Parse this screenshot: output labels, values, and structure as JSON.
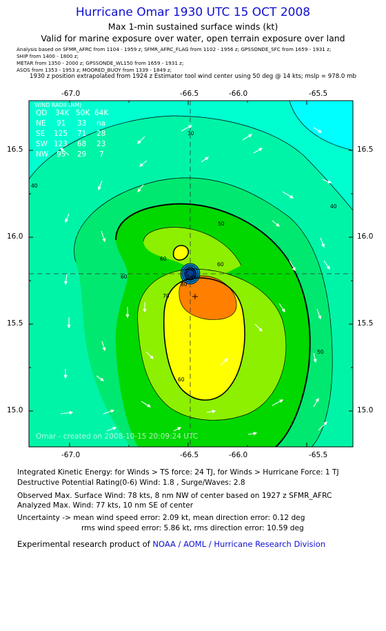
{
  "header": {
    "title": "Hurricane Omar 1930 UTC 15 OCT 2008",
    "subtitle": "Max 1-min sustained surface winds (kt)",
    "validity": "Valid for marine exposure over water, open terrain exposure over land"
  },
  "analysis_sources": [
    "Analysis based on  SFMR_AFRC from 1104 - 1959 z;  SFMR_AFRC_FLAG from 1102 - 1956 z;  GPSSONDE_SFC from 1659 - 1931 z;",
    "SHIP from 1400 - 1800 z;",
    "METAR from 1350 - 2000 z;  GPSSONDE_WL150 from 1659 - 1931 z;",
    "ASOS from 1353 - 1953 z;  MOORED_BUOY from 1339 - 1849 z;"
  ],
  "position_note": "1930 z position extrapolated from 1924 z Estimator tool wind center using 50 deg @ 14 kts; mslp = 978.0 mb",
  "axes": {
    "x_ticks": [
      "-67.0",
      "-66.5",
      "-66.0",
      "-65.5"
    ],
    "y_ticks": [
      "16.5",
      "16.0",
      "15.5",
      "15.0"
    ]
  },
  "wind_radii": {
    "title": "WIND RADII (NM)",
    "header": [
      "QD",
      "34K",
      "50K",
      "64K"
    ],
    "rows": [
      [
        "NE",
        "91",
        "33",
        "na"
      ],
      [
        "SE",
        "125",
        "71",
        "28"
      ],
      [
        "SW",
        "123",
        "68",
        "23"
      ],
      [
        "NW",
        "95",
        "29",
        "7"
      ]
    ]
  },
  "contour_labels": [
    "30",
    "40",
    "40",
    "50",
    "60",
    "60",
    "60",
    "70",
    "50",
    "60",
    "80"
  ],
  "watermark": "Omar  -  created on 2008-10-15 20:09:24 UTC",
  "colors": {
    "cyan": "#00ffff",
    "light_cyan": "#00ffd0",
    "aqua_green": "#00f4a8",
    "mint": "#00e870",
    "green": "#00d800",
    "light_green": "#8cf000",
    "yellow_green": "#d4f400",
    "yellow": "#ffff00",
    "orange": "#ff8000",
    "title_blue": "#1010d0"
  },
  "footer": {
    "ike": "Integrated Kinetic Energy:  for Winds > TS force: 24 TJ,  for Winds > Hurricane Force: 1 TJ",
    "dpr": "Destructive Potential Rating(0-6)   Wind: 1.8 , Surge/Waves: 2.8",
    "observed_max": "Observed Max. Surface Wind: 78 kts, 8 nm NW of center based on 1927 z SFMR_AFRC",
    "analyzed_max": "Analyzed Max. Wind: 77 kts, 10 nm SE of center",
    "uncertainty_1": "Uncertainty -> mean wind speed error: 2.09 kt,   mean direction error: 0.12 deg",
    "uncertainty_2": "rms wind speed error: 5.86 kt,   rms direction error: 10.59 deg",
    "product_prefix": "Experimental research product of ",
    "product_org": "NOAA / AOML / Hurricane Research Division"
  }
}
